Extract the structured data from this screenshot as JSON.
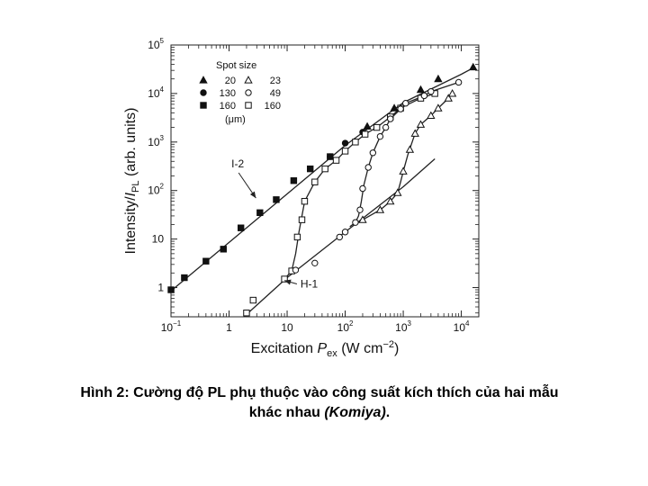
{
  "caption": {
    "line1": "Hình 2: Cường độ PL phụ thuộc vào công suất kích thích của hai mẫu",
    "line2_prefix": "khác nhau ",
    "line2_italic": "(Komiya)",
    "line2_suffix": "."
  },
  "chart_data": {
    "type": "scatter",
    "xscale": "log",
    "yscale": "log",
    "xlim": [
      0.1,
      20000
    ],
    "ylim": [
      0.25,
      100000
    ],
    "xticks": [
      {
        "v": 0.1,
        "base": "10",
        "exp": "−1"
      },
      {
        "v": 1,
        "base": "1",
        "exp": ""
      },
      {
        "v": 10,
        "base": "10",
        "exp": ""
      },
      {
        "v": 100,
        "base": "10",
        "exp": "2"
      },
      {
        "v": 1000,
        "base": "10",
        "exp": "3"
      },
      {
        "v": 10000,
        "base": "10",
        "exp": "4"
      }
    ],
    "yticks": [
      {
        "v": 1,
        "base": "1",
        "exp": ""
      },
      {
        "v": 10,
        "base": "10",
        "exp": ""
      },
      {
        "v": 100,
        "base": "10",
        "exp": "2"
      },
      {
        "v": 1000,
        "base": "10",
        "exp": "3"
      },
      {
        "v": 10000,
        "base": "10",
        "exp": "4"
      },
      {
        "v": 100000,
        "base": "10",
        "exp": "5"
      }
    ],
    "xlabel": {
      "text": "Excitation ",
      "italic": "P",
      "sub": "ex",
      "unit": " (W cm",
      "sup": "−2",
      "close": ")"
    },
    "ylabel": {
      "text": "Intensity/",
      "italic": "I",
      "sub": "PL",
      "unit": " (arb. units)"
    },
    "legend": {
      "title": "Spot size",
      "unit": "(μm)",
      "placement": "top-left",
      "entries": [
        {
          "marker": "filled-triangle",
          "label": "20"
        },
        {
          "marker": "open-triangle",
          "label": "23"
        },
        {
          "marker": "filled-circle",
          "label": "130"
        },
        {
          "marker": "open-circle",
          "label": "49"
        },
        {
          "marker": "filled-square",
          "label": "160"
        },
        {
          "marker": "open-square",
          "label": "160"
        }
      ]
    },
    "annotations": [
      {
        "text": "I-2",
        "at": [
          1.1,
          300
        ],
        "arrow_to": [
          2.9,
          70
        ]
      },
      {
        "text": "H-1",
        "at": [
          17,
          1.0
        ],
        "arrow_to": [
          9,
          1.4
        ]
      }
    ],
    "series": [
      {
        "sample": "I-2",
        "marker": "filled-square",
        "x": [
          0.1,
          0.17,
          0.4,
          0.8,
          1.6,
          3.4,
          6.5,
          13,
          25,
          55
        ],
        "y": [
          0.9,
          1.6,
          3.5,
          6.2,
          17,
          35,
          65,
          160,
          280,
          500
        ]
      },
      {
        "sample": "I-2",
        "marker": "filled-circle",
        "x": [
          55,
          100,
          200
        ],
        "y": [
          500,
          950,
          1600
        ]
      },
      {
        "sample": "I-2",
        "marker": "filled-triangle",
        "x": [
          240,
          700,
          2000,
          4000,
          16000
        ],
        "y": [
          2100,
          5000,
          12000,
          20000,
          35000
        ]
      },
      {
        "sample": "H-1",
        "marker": "open-square",
        "x": [
          2,
          2.6,
          9,
          12,
          15,
          18,
          20,
          30,
          45,
          70,
          100,
          150,
          220,
          350,
          600,
          900,
          2000,
          3500
        ],
        "y": [
          0.3,
          0.55,
          1.5,
          2.2,
          11,
          25,
          60,
          150,
          280,
          420,
          650,
          1000,
          1450,
          2000,
          3300,
          5000,
          8000,
          10000
        ]
      },
      {
        "sample": "H-1",
        "marker": "open-circle",
        "x": [
          14,
          30,
          80,
          100,
          150,
          180,
          200,
          250,
          300,
          400,
          500,
          600,
          900,
          1100,
          2300,
          3000,
          9000
        ],
        "y": [
          2.3,
          3.2,
          11,
          14,
          22,
          40,
          110,
          300,
          600,
          1300,
          2000,
          3000,
          4800,
          6300,
          9000,
          11000,
          17000
        ]
      },
      {
        "sample": "H-1",
        "marker": "open-triangle",
        "x": [
          200,
          400,
          600,
          800,
          1000,
          1300,
          1600,
          2000,
          3000,
          4000,
          6000,
          7000
        ],
        "y": [
          25,
          40,
          60,
          90,
          250,
          700,
          1500,
          2300,
          3500,
          5000,
          8000,
          10000
        ]
      }
    ],
    "curves": [
      {
        "name": "I-2",
        "x": [
          0.1,
          1,
          10,
          100,
          1000,
          10000,
          17000
        ],
        "y": [
          0.85,
          8.5,
          85,
          850,
          6500,
          25000,
          35000
        ]
      },
      {
        "name": "H-1 low",
        "x": [
          1.8,
          10,
          100,
          1000,
          3500
        ],
        "y": [
          0.25,
          1.6,
          14,
          120,
          450
        ]
      },
      {
        "name": "H-1 open squares",
        "x": [
          9,
          12,
          14,
          16,
          18,
          20,
          30,
          45,
          70,
          100,
          150,
          220,
          350,
          600,
          900,
          2000,
          3500
        ],
        "y": [
          1.5,
          2.2,
          5,
          14,
          30,
          60,
          150,
          280,
          420,
          650,
          1000,
          1450,
          2000,
          3300,
          5000,
          8000,
          10000
        ]
      },
      {
        "name": "H-1 open circles",
        "x": [
          120,
          150,
          170,
          190,
          210,
          250,
          300,
          400,
          500,
          600,
          900,
          1100,
          2300,
          3000,
          9000
        ],
        "y": [
          18,
          22,
          30,
          60,
          130,
          300,
          600,
          1300,
          2000,
          3000,
          4800,
          6300,
          9000,
          11000,
          17000
        ]
      },
      {
        "name": "H-1 open triangles",
        "x": [
          200,
          400,
          600,
          800,
          900,
          1000,
          1200,
          1600,
          2000,
          3000,
          4000,
          6000,
          7000
        ],
        "y": [
          25,
          40,
          60,
          90,
          150,
          250,
          550,
          1500,
          2300,
          3500,
          5000,
          8000,
          10000
        ]
      }
    ]
  }
}
